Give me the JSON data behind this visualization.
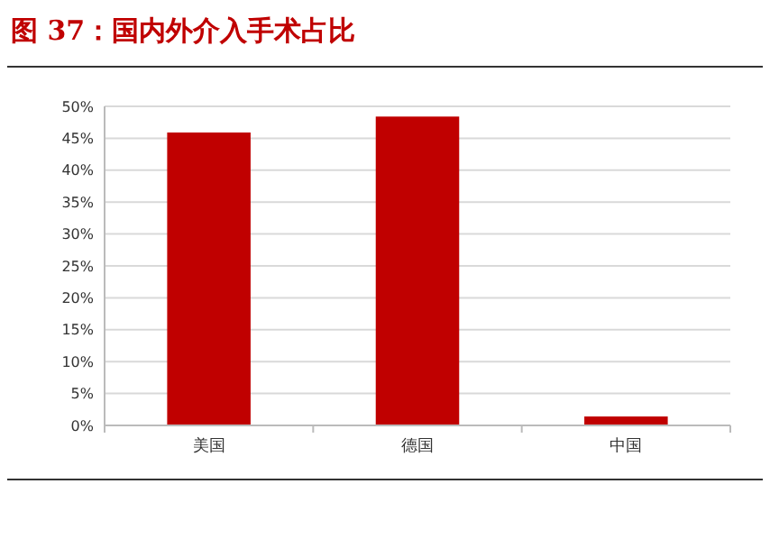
{
  "chart_data": {
    "type": "bar",
    "title": "图 37：国内外介入手术占比",
    "categories": [
      "美国",
      "德国",
      "中国"
    ],
    "values": [
      45.9,
      48.4,
      1.4
    ],
    "color": "#c00000",
    "ylim": [
      0,
      50
    ],
    "yticks": [
      {
        "value": 0,
        "label": "0%"
      },
      {
        "value": 5,
        "label": "5%"
      },
      {
        "value": 10,
        "label": "10%"
      },
      {
        "value": 15,
        "label": "15%"
      },
      {
        "value": 20,
        "label": "20%"
      },
      {
        "value": 25,
        "label": "25%"
      },
      {
        "value": 30,
        "label": "30%"
      },
      {
        "value": 35,
        "label": "35%"
      },
      {
        "value": 40,
        "label": "40%"
      },
      {
        "value": 45,
        "label": "45%"
      },
      {
        "value": 50,
        "label": "50%"
      }
    ],
    "grid": "y"
  }
}
